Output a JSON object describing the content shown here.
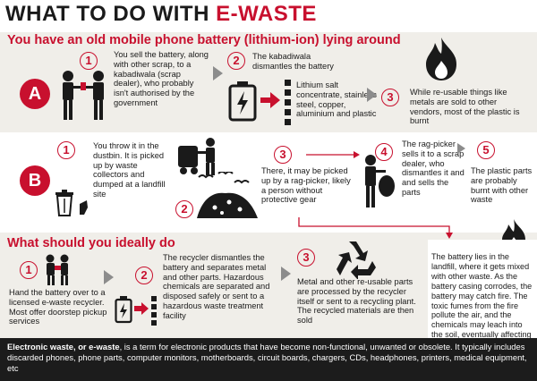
{
  "title": {
    "prefix": "WHAT TO DO WITH ",
    "highlight": "E-WASTE"
  },
  "sectionA": {
    "heading": "You have an old mobile phone battery (lithium-ion) lying around",
    "letter": "A",
    "steps": [
      {
        "num": "1",
        "text": "You sell the battery, along with other scrap, to a kabadiwala (scrap dealer), who probably isn't authorised by the government"
      },
      {
        "num": "2",
        "text": "The kabadiwala dismantles the battery"
      },
      {
        "num": "3",
        "text": "While re-usable things like metals are sold to other vendors, most of the plastic is burnt"
      }
    ],
    "materials": "Lithium salt concentrate, stainless steel, copper, aluminium and plastic"
  },
  "sectionB": {
    "letter": "B",
    "steps": [
      {
        "num": "1",
        "text": "You throw it in the dustbin. It is picked up by waste collectors and dumped at a landfill site"
      },
      {
        "num": "2",
        "text": ""
      },
      {
        "num": "3",
        "text": "There, it may be picked up by a rag-picker, likely a person without protective gear"
      },
      {
        "num": "4",
        "text": "The rag-picker sells it to a scrap dealer, who dismantles it and and sells the parts"
      },
      {
        "num": "5",
        "text": "The plastic parts are probably burnt with other waste"
      }
    ],
    "landfill_note": "The battery lies in the landfill, where it gets mixed with other waste. As the battery casing corrodes, the battery may catch fire. The toxic fumes from the fire pollute the air, and the chemicals may leach into the soil, eventually affecting groundwater"
  },
  "sectionC": {
    "heading": "What should you ideally do",
    "steps": [
      {
        "num": "1",
        "text": "Hand the battery over to a licensed e-waste recycler. Most offer doorstep pickup services"
      },
      {
        "num": "2",
        "text": "The recycler dismantles the battery and separates metal and other parts. Hazardous chemicals are separated and disposed safely or sent to a hazardous waste treatment facility"
      },
      {
        "num": "3",
        "text": "Metal and other re-usable parts are processed by the recycler itself or sent to a recycling plant. The recycled materials are then sold"
      }
    ]
  },
  "footer": {
    "term": "Electronic waste, or e-waste",
    "definition": ", is a term for electronic products that have become non-functional, unwanted or obsolete. It typically includes discarded phones, phone parts, computer monitors, motherboards, circuit boards, chargers, CDs, headphones, printers, medical equipment, etc"
  },
  "colors": {
    "accent": "#c8102e",
    "band": "#f0eee9",
    "footer_bg": "#1c1c1c"
  }
}
